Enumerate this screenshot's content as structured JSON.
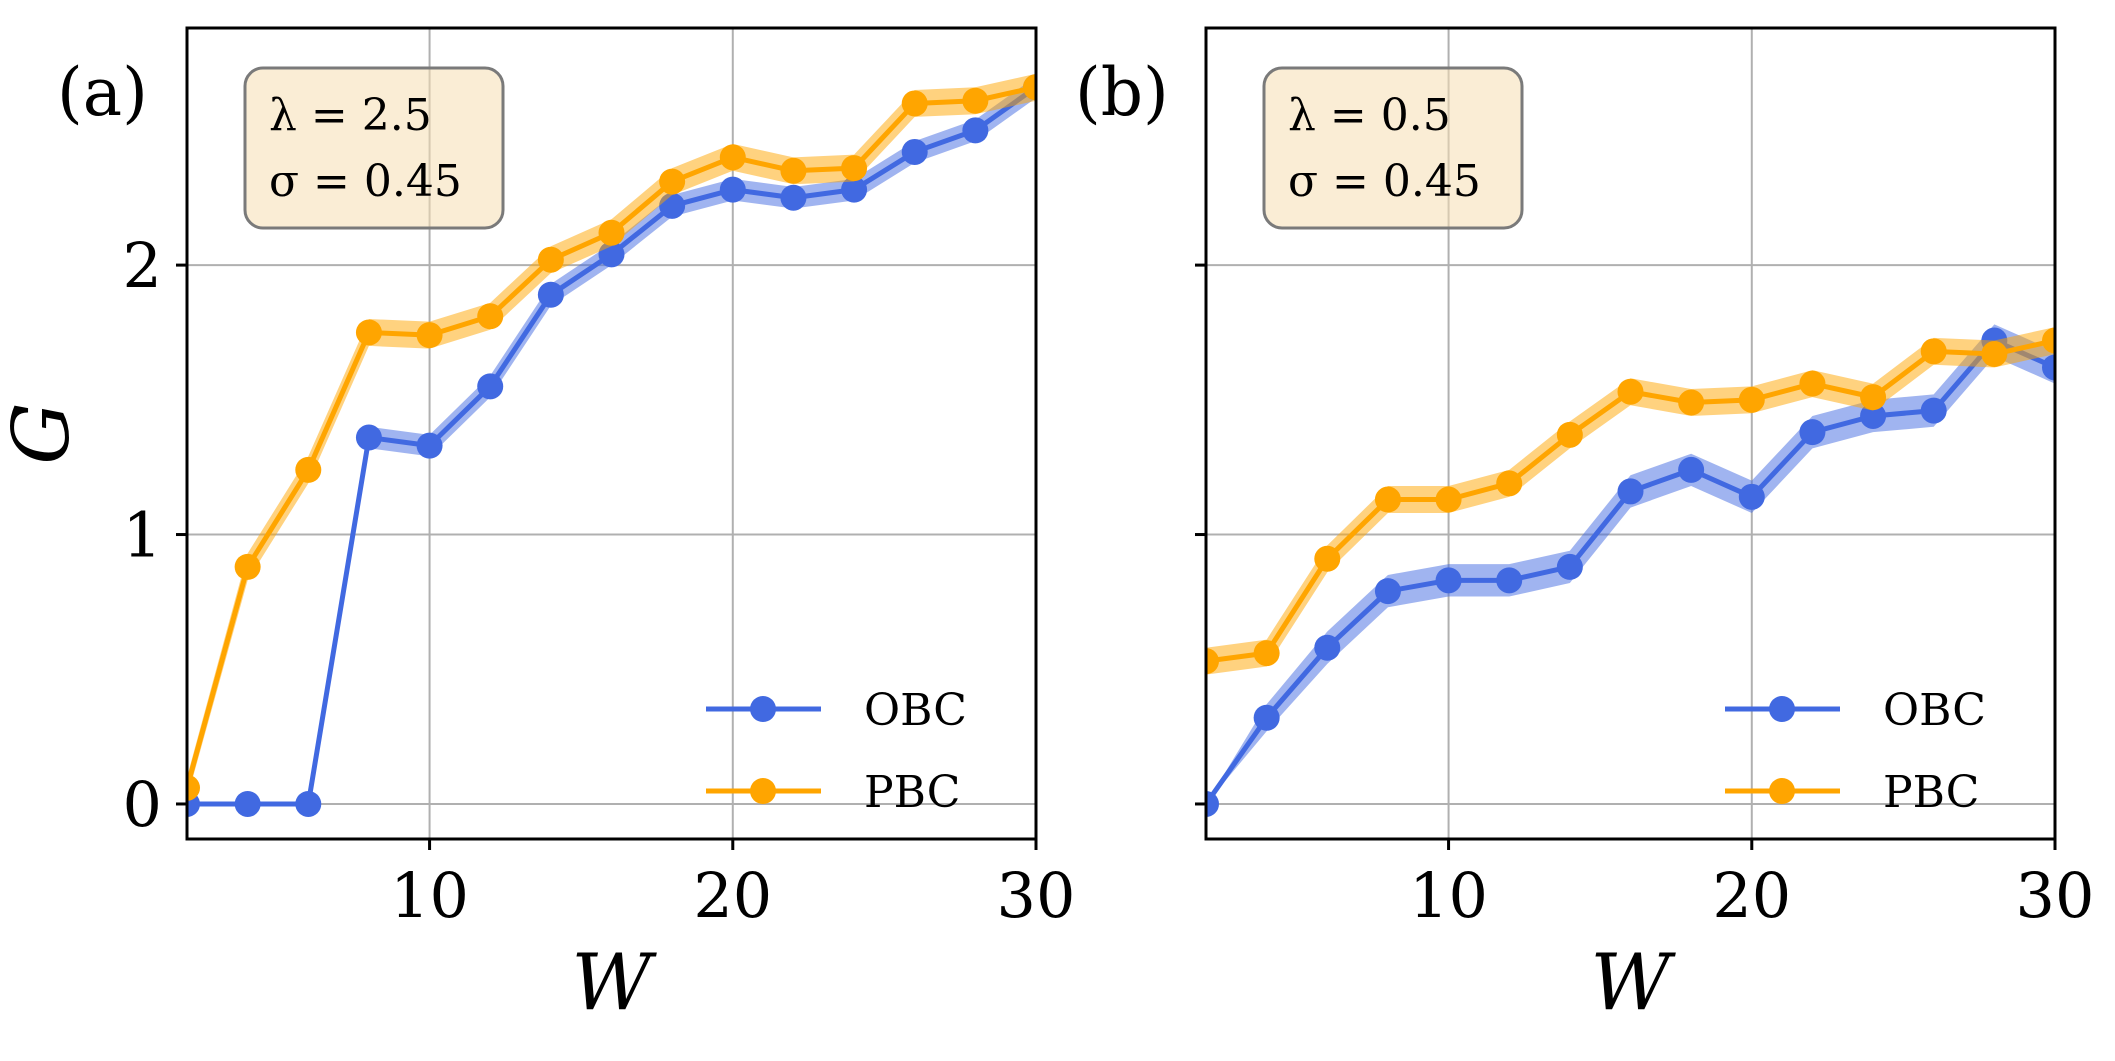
{
  "colors": {
    "obc": "#4169E1",
    "pbc": "#FFA500",
    "grid": "#b0b0b0",
    "annotation_bg": "#F5DEB3"
  },
  "chart_data": [
    {
      "type": "line",
      "panel_label": "(a)",
      "annotation": [
        "λ = 2.5",
        "σ = 0.45"
      ],
      "xlabel": "W",
      "ylabel": "G",
      "xlim": [
        2,
        30
      ],
      "ylim": [
        -0.13,
        2.88
      ],
      "xticks": [
        10,
        20,
        30
      ],
      "yticks": [
        0,
        1,
        2
      ],
      "show_yticklabels": true,
      "legend_position": "lower-right",
      "x": [
        2,
        4,
        6,
        8,
        10,
        12,
        14,
        16,
        18,
        20,
        22,
        24,
        26,
        28,
        30
      ],
      "series": [
        {
          "name": "OBC",
          "values": [
            0.0,
            0.0,
            0.0,
            1.36,
            1.33,
            1.55,
            1.89,
            2.04,
            2.22,
            2.28,
            2.25,
            2.28,
            2.42,
            2.5,
            2.66
          ],
          "error": [
            0.0,
            0.0,
            0.0,
            0.04,
            0.04,
            0.04,
            0.04,
            0.04,
            0.04,
            0.04,
            0.04,
            0.04,
            0.04,
            0.04,
            0.04
          ]
        },
        {
          "name": "PBC",
          "values": [
            0.06,
            0.88,
            1.24,
            1.75,
            1.74,
            1.81,
            2.02,
            2.12,
            2.31,
            2.4,
            2.35,
            2.36,
            2.6,
            2.61,
            2.66
          ],
          "error": [
            0.04,
            0.05,
            0.05,
            0.05,
            0.05,
            0.05,
            0.05,
            0.05,
            0.05,
            0.05,
            0.05,
            0.05,
            0.05,
            0.05,
            0.05
          ]
        }
      ]
    },
    {
      "type": "line",
      "panel_label": "(b)",
      "annotation": [
        "λ = 0.5",
        "σ = 0.45"
      ],
      "xlabel": "W",
      "ylabel": "",
      "xlim": [
        2,
        30
      ],
      "ylim": [
        -0.13,
        2.88
      ],
      "xticks": [
        10,
        20,
        30
      ],
      "yticks": [
        0,
        1,
        2
      ],
      "show_yticklabels": false,
      "legend_position": "lower-right",
      "x": [
        2,
        4,
        6,
        8,
        10,
        12,
        14,
        16,
        18,
        20,
        22,
        24,
        26,
        28,
        30
      ],
      "series": [
        {
          "name": "OBC",
          "values": [
            0.0,
            0.32,
            0.58,
            0.79,
            0.83,
            0.83,
            0.88,
            1.16,
            1.24,
            1.14,
            1.38,
            1.44,
            1.46,
            1.72,
            1.62
          ],
          "error": [
            0.0,
            0.05,
            0.06,
            0.06,
            0.06,
            0.06,
            0.06,
            0.06,
            0.06,
            0.06,
            0.06,
            0.06,
            0.06,
            0.06,
            0.06
          ]
        },
        {
          "name": "PBC",
          "values": [
            0.53,
            0.56,
            0.91,
            1.13,
            1.13,
            1.19,
            1.37,
            1.53,
            1.49,
            1.5,
            1.56,
            1.51,
            1.68,
            1.67,
            1.72
          ],
          "error": [
            0.05,
            0.05,
            0.05,
            0.05,
            0.05,
            0.05,
            0.05,
            0.05,
            0.05,
            0.05,
            0.05,
            0.05,
            0.05,
            0.05,
            0.05
          ]
        }
      ]
    }
  ]
}
